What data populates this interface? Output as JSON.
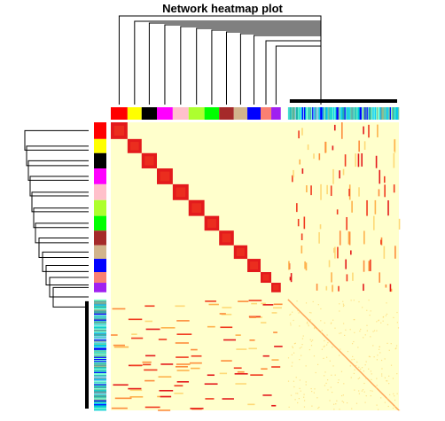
{
  "chart_data": {
    "type": "heatmap",
    "title": "Network heatmap plot",
    "n_modules": 14,
    "module_colors": [
      "#ff0000",
      "#ffff00",
      "#000000",
      "#ff00ff",
      "#ffc0cb",
      "#adff2f",
      "#00ff00",
      "#a52a2a",
      "#d2b48c",
      "#0000ff",
      "#fa8072",
      "#a020f0"
    ],
    "unassigned_colors": [
      "#40e0d0",
      "#00ced1",
      "#66cdaa",
      "#48d1cc",
      "#87ceeb",
      "#7fffd4",
      "#5f9ea0",
      "#00bfff",
      "#20b2aa",
      "#8fbc8f",
      "#0000ff",
      "#7fffd4"
    ],
    "heat_colors": {
      "low": "#ffffcc",
      "mid": "#fd8d3c",
      "high": "#e31a1c"
    },
    "grid": false,
    "legend": "none"
  }
}
